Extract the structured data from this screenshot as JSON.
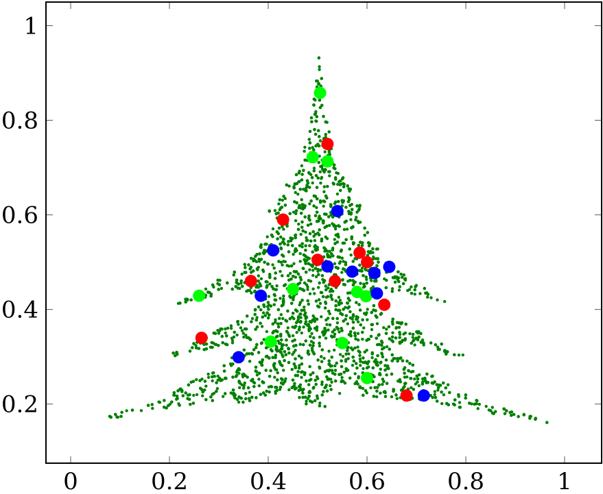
{
  "chart_data": {
    "type": "scatter",
    "title": "",
    "xlabel": "",
    "ylabel": "",
    "xlim": [
      -0.05,
      1.075
    ],
    "ylim": [
      0.075,
      1.05
    ],
    "grid": false,
    "x_ticks": [
      0,
      0.2,
      0.4,
      0.6,
      0.8,
      1
    ],
    "y_ticks": [
      0.2,
      0.4,
      0.6,
      0.8,
      1
    ],
    "x_tick_labels": [
      "0",
      "0.2",
      "0.4",
      "0.6",
      "0.8",
      "1"
    ],
    "y_tick_labels": [
      "0.2",
      "0.4",
      "0.6",
      "0.8",
      "1"
    ],
    "tree_color": "#008000",
    "tree_outline": [
      [
        0.503,
        0.94
      ],
      [
        0.515,
        0.82
      ],
      [
        0.54,
        0.7
      ],
      [
        0.6,
        0.6
      ],
      [
        0.585,
        0.59
      ],
      [
        0.64,
        0.5
      ],
      [
        0.76,
        0.415
      ],
      [
        0.66,
        0.44
      ],
      [
        0.6,
        0.42
      ],
      [
        0.66,
        0.38
      ],
      [
        0.82,
        0.29
      ],
      [
        0.7,
        0.32
      ],
      [
        0.62,
        0.34
      ],
      [
        0.7,
        0.28
      ],
      [
        0.8,
        0.22
      ],
      [
        0.98,
        0.157
      ],
      [
        0.8,
        0.19
      ],
      [
        0.7,
        0.21
      ],
      [
        0.64,
        0.2
      ],
      [
        0.56,
        0.23
      ],
      [
        0.5,
        0.18
      ],
      [
        0.44,
        0.23
      ],
      [
        0.36,
        0.2
      ],
      [
        0.3,
        0.21
      ],
      [
        0.2,
        0.19
      ],
      [
        0.045,
        0.163
      ],
      [
        0.2,
        0.22
      ],
      [
        0.3,
        0.28
      ],
      [
        0.38,
        0.34
      ],
      [
        0.3,
        0.32
      ],
      [
        0.18,
        0.293
      ],
      [
        0.34,
        0.38
      ],
      [
        0.4,
        0.42
      ],
      [
        0.34,
        0.44
      ],
      [
        0.21,
        0.41
      ],
      [
        0.36,
        0.5
      ],
      [
        0.42,
        0.59
      ],
      [
        0.395,
        0.6
      ],
      [
        0.46,
        0.7
      ],
      [
        0.49,
        0.82
      ]
    ],
    "series": [
      {
        "color": "#ff0000",
        "points": [
          [
            0.52,
            0.75
          ],
          [
            0.43,
            0.59
          ],
          [
            0.5,
            0.505
          ],
          [
            0.585,
            0.52
          ],
          [
            0.6,
            0.5
          ],
          [
            0.365,
            0.46
          ],
          [
            0.535,
            0.46
          ],
          [
            0.635,
            0.41
          ],
          [
            0.265,
            0.34
          ],
          [
            0.68,
            0.218
          ]
        ]
      },
      {
        "color": "#00ff00",
        "points": [
          [
            0.505,
            0.858
          ],
          [
            0.49,
            0.722
          ],
          [
            0.52,
            0.713
          ],
          [
            0.26,
            0.429
          ],
          [
            0.45,
            0.443
          ],
          [
            0.58,
            0.437
          ],
          [
            0.598,
            0.428
          ],
          [
            0.405,
            0.332
          ],
          [
            0.55,
            0.329
          ],
          [
            0.6,
            0.255
          ]
        ]
      },
      {
        "color": "#0000ff",
        "points": [
          [
            0.54,
            0.608
          ],
          [
            0.41,
            0.525
          ],
          [
            0.52,
            0.491
          ],
          [
            0.57,
            0.48
          ],
          [
            0.615,
            0.477
          ],
          [
            0.645,
            0.49
          ],
          [
            0.385,
            0.429
          ],
          [
            0.62,
            0.434
          ],
          [
            0.34,
            0.299
          ],
          [
            0.715,
            0.218
          ]
        ]
      }
    ]
  }
}
